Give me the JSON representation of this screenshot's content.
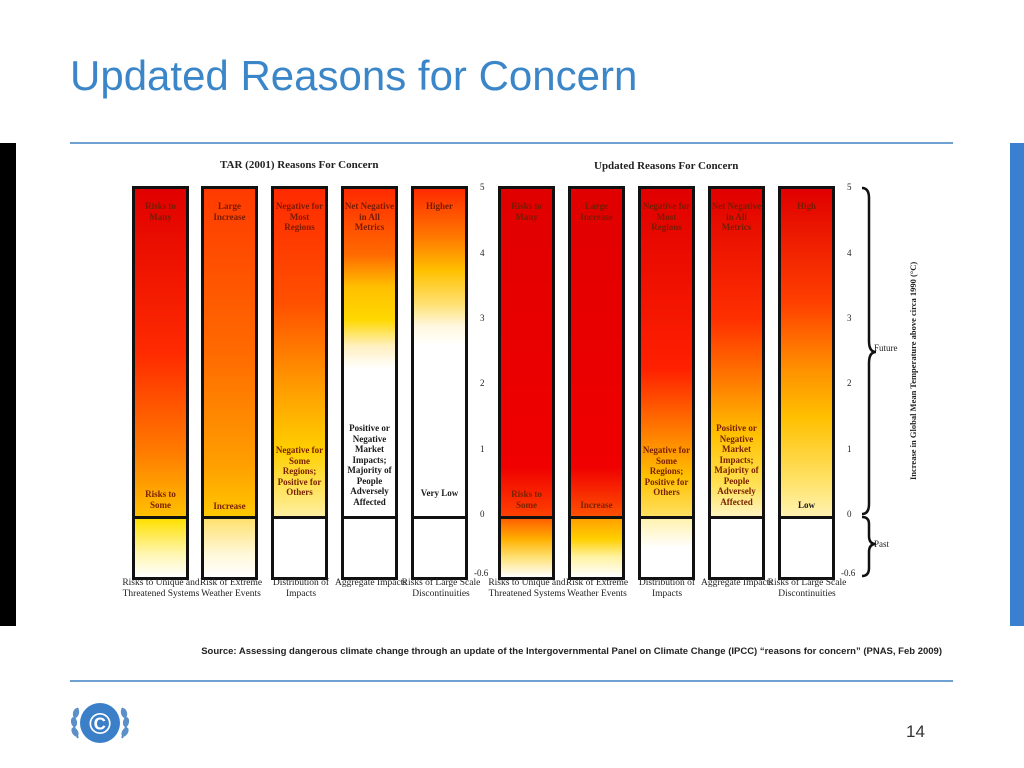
{
  "slide": {
    "title": "Updated Reasons for Concern",
    "page_number": "14",
    "source": "Source: Assessing dangerous climate change through an update of the Intergovernmental Panel on Climate Change (IPCC) “reasons for concern” (PNAS, Feb 2009)"
  },
  "logo": {
    "icon": "unfccc-logo",
    "symbol": "©"
  },
  "figure": {
    "left_panel_title": "TAR (2001) Reasons For Concern",
    "right_panel_title": "Updated Reasons For Concern",
    "axis_title": "Increase in Global Mean Temperature above circa 1990 (°C)",
    "ticks": [
      "5",
      "4",
      "3",
      "2",
      "1",
      "0",
      "-0.6"
    ],
    "brace_labels": {
      "future": "Future",
      "past": "Past"
    },
    "tar_columns": [
      {
        "top": "Risks to Many",
        "bottom": "Risks to Some",
        "category": "Risks to Unique and Threatened Systems"
      },
      {
        "top": "Large Increase",
        "bottom": "Increase",
        "category": "Risk of Extreme Weather Events"
      },
      {
        "top": "Negative for Most Regions",
        "bottom": "Negative for Some Regions; Positive for Others",
        "category": "Distribution of Impacts"
      },
      {
        "top": "Net Negative in All Metrics",
        "bottom": "Positive or Negative Market Impacts; Majority of People Adversely Affected",
        "category": "Aggregate Impacts"
      },
      {
        "top": "Higher",
        "bottom": "Very Low",
        "category": "Risks of Large Scale Discontinuities"
      }
    ],
    "updated_columns": [
      {
        "top": "Risks to Many",
        "bottom": "Risks to Some",
        "category": "Risks to Unique and Threatened Systems"
      },
      {
        "top": "Large Increase",
        "bottom": "Increase",
        "category": "Risk of Extreme Weather Events"
      },
      {
        "top": "Negative for Most Regions",
        "bottom": "Negative for Some Regions; Positive for Others",
        "category": "Distribution of Impacts"
      },
      {
        "top": "Net Negative in All Metrics",
        "bottom": "Positive or Negative Market Impacts; Majority of People Adversely Affected",
        "category": "Aggregate Impacts"
      },
      {
        "top": "High",
        "bottom": "Low",
        "category": "Risks of Large Scale Discontinuities"
      }
    ]
  }
}
